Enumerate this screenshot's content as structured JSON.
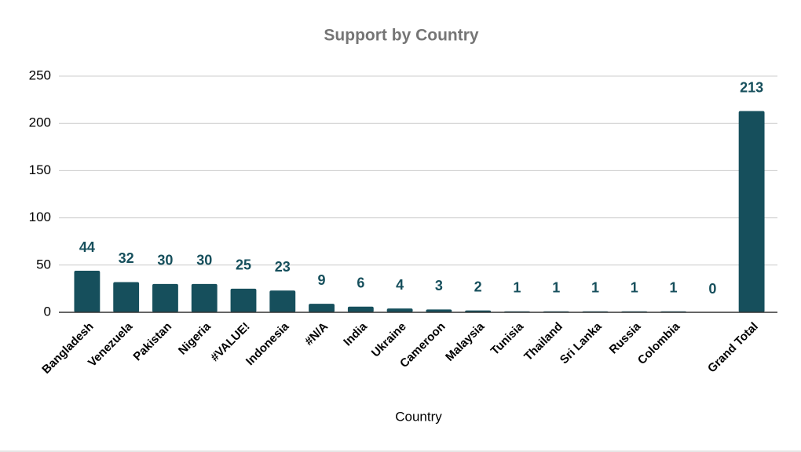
{
  "chart_data": {
    "type": "bar",
    "title": "Support by Country",
    "x_label": "Country",
    "categories": [
      "Bangladesh",
      "Venezuela",
      "Pakistan",
      "Nigeria",
      "#VALUE!",
      "Indonesia",
      "#N/A",
      "India",
      "Ukraine",
      "Cameroon",
      "Malaysia",
      "Tunisia",
      "Thailand",
      "Sri Lanka",
      "Russia",
      "Colombia",
      null,
      "Grand Total"
    ],
    "values": [
      44,
      32,
      30,
      30,
      25,
      23,
      9,
      6,
      4,
      3,
      2,
      1,
      1,
      1,
      1,
      1,
      0,
      213
    ],
    "color": "#164f5c",
    "ylim": [
      0,
      250
    ],
    "yticks": [
      0,
      50,
      100,
      150,
      200,
      250
    ],
    "grid": true
  }
}
